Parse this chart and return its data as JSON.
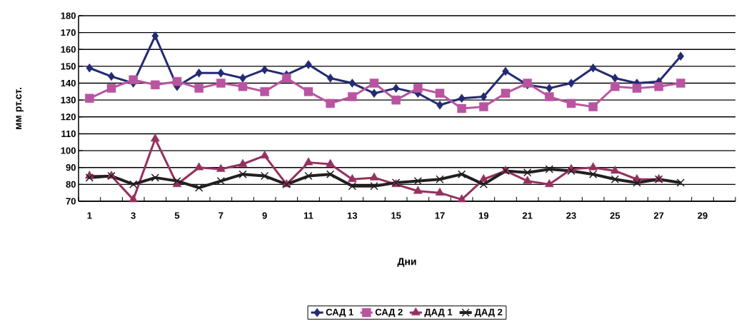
{
  "chart_data": {
    "type": "line",
    "xlabel": "Дни",
    "ylabel": "мм рт.ст.",
    "categories": [
      "1",
      null,
      "3",
      null,
      "5",
      null,
      "7",
      null,
      "9",
      null,
      "11",
      null,
      "13",
      null,
      "15",
      null,
      "17",
      null,
      "19",
      null,
      "21",
      null,
      "23",
      null,
      "25",
      null,
      "27",
      null,
      "29",
      null
    ],
    "ylim": [
      70,
      180
    ],
    "yticks": [
      70,
      80,
      90,
      100,
      110,
      120,
      130,
      140,
      150,
      160,
      170,
      180
    ],
    "grid": "y",
    "legend": "bottom",
    "series": [
      {
        "name": "САД 1",
        "color": "#232a72",
        "marker": "diamond",
        "values": [
          149,
          144,
          140,
          168,
          138,
          146,
          146,
          143,
          148,
          145,
          151,
          143,
          140,
          134,
          137,
          134,
          127,
          131,
          132,
          147,
          139,
          137,
          140,
          149,
          143,
          140,
          141,
          156,
          null,
          null
        ]
      },
      {
        "name": "САД 2",
        "color": "#b954a0",
        "marker": "square",
        "values": [
          131,
          137,
          142,
          139,
          141,
          137,
          140,
          138,
          135,
          143,
          135,
          128,
          132,
          140,
          130,
          137,
          134,
          125,
          126,
          134,
          140,
          132,
          128,
          126,
          138,
          137,
          138,
          140,
          null,
          null
        ]
      },
      {
        "name": "ДАД 1",
        "color": "#95305f",
        "marker": "triangle",
        "values": [
          85,
          85,
          71,
          107,
          80,
          90,
          89,
          92,
          97,
          80,
          93,
          92,
          83,
          84,
          80,
          76,
          75,
          71,
          83,
          88,
          82,
          80,
          89,
          90,
          88,
          83,
          83,
          null,
          null,
          null
        ]
      },
      {
        "name": "ДАД 2",
        "color": "#231f20",
        "marker": "cross",
        "values": [
          84,
          85,
          80,
          84,
          82,
          78,
          82,
          86,
          85,
          80,
          85,
          86,
          79,
          79,
          81,
          82,
          83,
          86,
          80,
          88,
          87,
          89,
          88,
          86,
          83,
          81,
          83,
          81,
          null,
          null
        ]
      }
    ]
  }
}
